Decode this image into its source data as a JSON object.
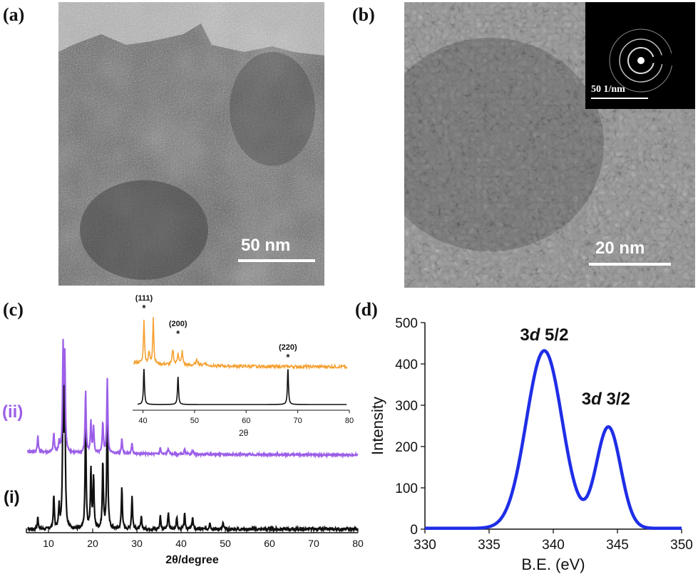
{
  "panels": {
    "a": {
      "label": "(a)",
      "scale_text": "50 nm"
    },
    "b": {
      "label": "(b)",
      "scale_text": "20 nm",
      "inset_scale_text": "50 1/nm"
    },
    "c": {
      "label": "(c)"
    },
    "d": {
      "label": "(d)"
    }
  },
  "colors": {
    "xrd_i": "#111111",
    "xrd_ii": "#9c5fe8",
    "inset_top": "#f5a030",
    "xps": "#1f2ee6"
  },
  "chart_data": [
    {
      "type": "line",
      "panel": "c",
      "xlabel": "2θ/degree",
      "ylabel": "",
      "xlim": [
        5,
        80
      ],
      "xticks": [
        10,
        20,
        30,
        40,
        50,
        60,
        70,
        80
      ],
      "series": [
        {
          "name": "(i)",
          "peaks": [
            [
              7.6,
              0.08
            ],
            [
              11.2,
              0.22
            ],
            [
              12.4,
              0.15
            ],
            [
              13.3,
              1.0
            ],
            [
              13.7,
              0.9
            ],
            [
              18.4,
              0.72
            ],
            [
              19.6,
              0.4
            ],
            [
              20.2,
              0.35
            ],
            [
              22.3,
              0.45
            ],
            [
              23.3,
              0.9
            ],
            [
              26.6,
              0.28
            ],
            [
              28.9,
              0.22
            ],
            [
              31.0,
              0.08
            ],
            [
              35.3,
              0.09
            ],
            [
              37.1,
              0.11
            ],
            [
              39.0,
              0.08
            ],
            [
              40.8,
              0.1
            ],
            [
              42.6,
              0.08
            ],
            [
              46.5,
              0.05
            ],
            [
              49.5,
              0.04
            ]
          ]
        },
        {
          "name": "(ii)",
          "peaks": [
            [
              7.6,
              0.15
            ],
            [
              11.2,
              0.18
            ],
            [
              12.4,
              0.1
            ],
            [
              13.3,
              1.0
            ],
            [
              13.7,
              0.9
            ],
            [
              18.4,
              0.6
            ],
            [
              19.6,
              0.3
            ],
            [
              20.2,
              0.25
            ],
            [
              22.3,
              0.3
            ],
            [
              23.3,
              0.72
            ],
            [
              26.6,
              0.15
            ],
            [
              28.9,
              0.1
            ],
            [
              35.3,
              0.06
            ],
            [
              37.1,
              0.06
            ],
            [
              40.8,
              0.05
            ],
            [
              42.6,
              0.04
            ]
          ]
        }
      ]
    },
    {
      "type": "line",
      "panel": "c-inset",
      "xlabel": "2θ",
      "xlim": [
        38,
        80
      ],
      "xticks": [
        40,
        50,
        60,
        70,
        80
      ],
      "annotations": [
        {
          "text": "(111)",
          "x": 40.2
        },
        {
          "text": "(200)",
          "x": 46.8
        },
        {
          "text": "(220)",
          "x": 68.1
        }
      ],
      "star": "*",
      "reference_peaks": [
        40.2,
        46.8,
        68.1
      ]
    },
    {
      "type": "line",
      "panel": "d",
      "xlabel": "B.E. (eV)",
      "ylabel": "Intensity",
      "xlim": [
        330,
        350
      ],
      "ylim": [
        0,
        500
      ],
      "xticks": [
        330,
        335,
        340,
        345,
        350
      ],
      "yticks": [
        0,
        100,
        200,
        300,
        400,
        500
      ],
      "peak_labels": [
        {
          "prefix": "3",
          "italic": "d",
          "suffix": " 5/2",
          "x": 339.3,
          "y": 430
        },
        {
          "prefix": "3",
          "italic": "d",
          "suffix": " 3/2",
          "x": 344.2,
          "y": 255
        }
      ],
      "peaks": [
        {
          "center": 339.3,
          "height": 430,
          "sigma": 1.4
        },
        {
          "center": 344.3,
          "height": 245,
          "sigma": 0.95
        }
      ]
    }
  ]
}
